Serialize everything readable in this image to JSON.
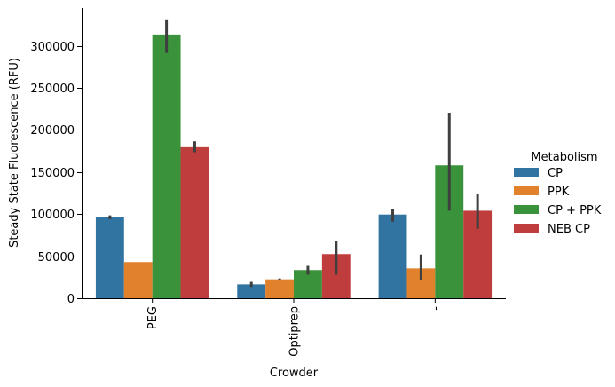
{
  "chart_data": {
    "type": "bar",
    "xlabel": "Crowder",
    "ylabel": "Steady State Fluorescence (RFU)",
    "ylim": [
      0,
      345000
    ],
    "yticks": [
      0,
      50000,
      100000,
      150000,
      200000,
      250000,
      300000
    ],
    "ytick_labels": [
      "0",
      "50000",
      "100000",
      "150000",
      "200000",
      "250000",
      "300000"
    ],
    "categories": [
      "PEG",
      "Optiprep",
      "-"
    ],
    "legend": {
      "title": "Metabolism",
      "placement": "right"
    },
    "grid": false,
    "series": [
      {
        "name": "CP",
        "color": "#3274a1",
        "values": [
          96500,
          16500,
          99500
        ],
        "err_low": [
          94000,
          13500,
          91000
        ],
        "err_high": [
          98500,
          19500,
          105500
        ]
      },
      {
        "name": "PPK",
        "color": "#e1812c",
        "values": [
          43000,
          22500,
          35500
        ],
        "err_low": [
          43000,
          21500,
          22000
        ],
        "err_high": [
          43000,
          23500,
          52000
        ]
      },
      {
        "name": "CP + PPK",
        "color": "#3a923a",
        "values": [
          313500,
          33500,
          158000
        ],
        "err_low": [
          291500,
          28000,
          104000
        ],
        "err_high": [
          331500,
          38500,
          220500
        ]
      },
      {
        "name": "NEB CP",
        "color": "#c03d3e",
        "values": [
          179500,
          52500,
          104000
        ],
        "err_low": [
          173500,
          28000,
          82500
        ],
        "err_high": [
          186500,
          68500,
          123500
        ]
      }
    ]
  }
}
